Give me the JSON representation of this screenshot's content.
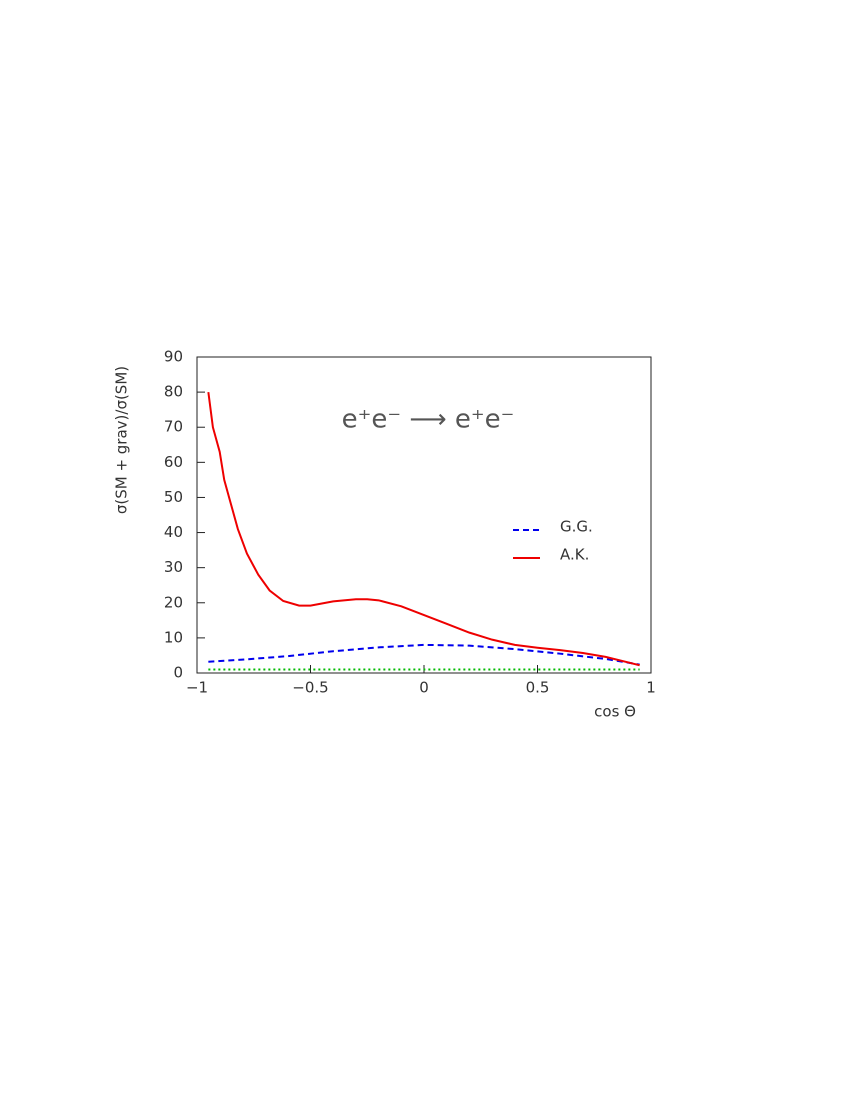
{
  "chart_data": {
    "type": "line",
    "annotation": "e⁺e⁻ ⟶ e⁺e⁻",
    "xlabel": "cos Θ",
    "ylabel": "σ(SM + grav)/σ(SM)",
    "xlim": [
      -1,
      1
    ],
    "ylim": [
      0,
      90
    ],
    "xticks": [
      {
        "value": -1,
        "label": "−1"
      },
      {
        "value": -0.5,
        "label": "−0.5"
      },
      0,
      0.5,
      1
    ],
    "yticks": [
      0,
      10,
      20,
      30,
      40,
      50,
      60,
      70,
      80,
      90
    ],
    "series": [
      {
        "name": "G.G.",
        "color": "#0000ee",
        "dash": "dashed",
        "x": [
          -0.95,
          -0.8,
          -0.6,
          -0.4,
          -0.2,
          0,
          0.2,
          0.4,
          0.6,
          0.8,
          0.95
        ],
        "values": [
          3.2,
          3.8,
          4.8,
          6.2,
          7.3,
          8,
          7.8,
          6.8,
          5.5,
          4,
          2.4
        ]
      },
      {
        "name": "A.K.",
        "color": "#ee0000",
        "dash": "solid",
        "x": [
          -0.95,
          -0.93,
          -0.9,
          -0.88,
          -0.85,
          -0.82,
          -0.78,
          -0.73,
          -0.68,
          -0.62,
          -0.55,
          -0.5,
          -0.45,
          -0.4,
          -0.3,
          -0.25,
          -0.2,
          -0.1,
          0,
          0.1,
          0.2,
          0.3,
          0.4,
          0.5,
          0.6,
          0.7,
          0.8,
          0.9,
          0.95
        ],
        "values": [
          80,
          70,
          63,
          55,
          48,
          41,
          34,
          28,
          23.5,
          20.5,
          19.2,
          19.2,
          19.8,
          20.4,
          21,
          21,
          20.7,
          19,
          16.5,
          14,
          11.5,
          9.5,
          8,
          7.2,
          6.5,
          5.7,
          4.6,
          3,
          2.2
        ]
      },
      {
        "color": "#00bb00",
        "dash": "dotted",
        "x": [
          -0.95,
          0.95
        ],
        "values": [
          1,
          1
        ]
      }
    ]
  }
}
